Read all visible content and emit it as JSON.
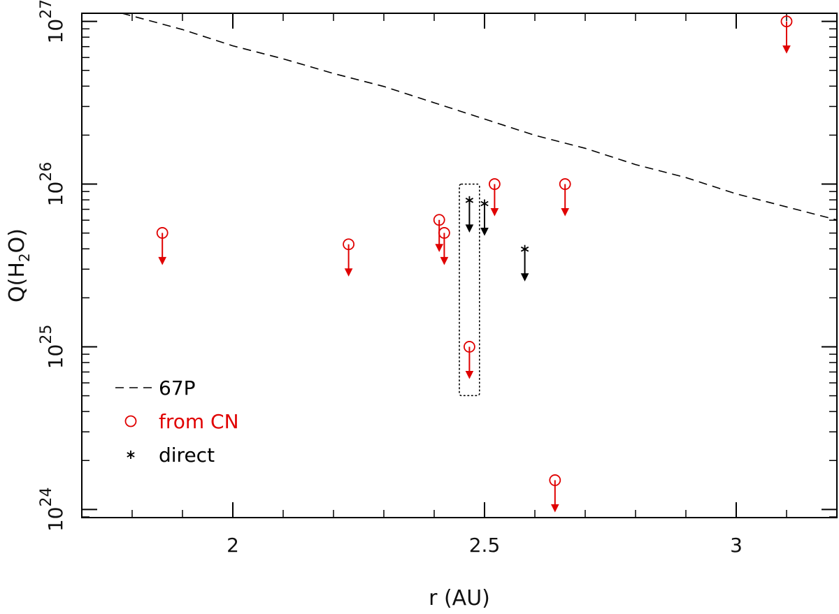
{
  "chart_data": {
    "type": "scatter",
    "xlabel": "r (AU)",
    "ylabel": {
      "prefix": "Q(H",
      "sub": "2",
      "suffix": "O)"
    },
    "xlim": [
      1.7,
      3.2
    ],
    "ylim_log10": [
      23.95,
      27.05
    ],
    "y_scale": "log",
    "grid": false,
    "x_ticks": [
      {
        "value": 2.0,
        "label": "2"
      },
      {
        "value": 2.5,
        "label": "2.5"
      },
      {
        "value": 3.0,
        "label": "3"
      }
    ],
    "y_ticks": [
      {
        "exp": 24,
        "base": "10",
        "exponent": "24"
      },
      {
        "exp": 25,
        "base": "10",
        "exponent": "25"
      },
      {
        "exp": 26,
        "base": "10",
        "exponent": "26"
      },
      {
        "exp": 27,
        "base": "10",
        "exponent": "27"
      }
    ],
    "legend": {
      "placement": "bottom-left",
      "entries": [
        {
          "label": "67P",
          "marker": "dashed-line",
          "color": "#000000"
        },
        {
          "label": "from CN",
          "marker": "circle",
          "color": "#e00000"
        },
        {
          "label": "direct",
          "marker": "asterisk",
          "color": "#000000"
        }
      ]
    },
    "series": [
      {
        "name": "67P",
        "style": "dashed-line",
        "color": "#000000",
        "points": [
          [
            1.78,
            27.05
          ],
          [
            1.9,
            26.95
          ],
          [
            2.0,
            26.85
          ],
          [
            2.1,
            26.77
          ],
          [
            2.2,
            26.68
          ],
          [
            2.3,
            26.6
          ],
          [
            2.4,
            26.5
          ],
          [
            2.5,
            26.4
          ],
          [
            2.6,
            26.3
          ],
          [
            2.7,
            26.22
          ],
          [
            2.8,
            26.12
          ],
          [
            2.9,
            26.04
          ],
          [
            3.0,
            25.94
          ],
          [
            3.1,
            25.86
          ],
          [
            3.2,
            25.78
          ]
        ]
      },
      {
        "name": "from CN",
        "style": "upper-limit-circle",
        "color": "#e00000",
        "points": [
          [
            1.86,
            25.7
          ],
          [
            2.23,
            25.63
          ],
          [
            2.41,
            25.78
          ],
          [
            2.42,
            25.7
          ],
          [
            2.47,
            25.0
          ],
          [
            2.52,
            26.0
          ],
          [
            2.66,
            26.0
          ],
          [
            2.64,
            24.18
          ],
          [
            3.1,
            27.0
          ]
        ]
      },
      {
        "name": "direct",
        "style": "upper-limit-asterisk",
        "color": "#000000",
        "points": [
          [
            2.47,
            25.9
          ],
          [
            2.5,
            25.88
          ],
          [
            2.58,
            25.6
          ]
        ]
      }
    ],
    "annotations": [
      {
        "type": "dotted-box",
        "x": [
          2.45,
          2.49
        ],
        "y_log10": [
          24.7,
          26.0
        ]
      }
    ]
  }
}
